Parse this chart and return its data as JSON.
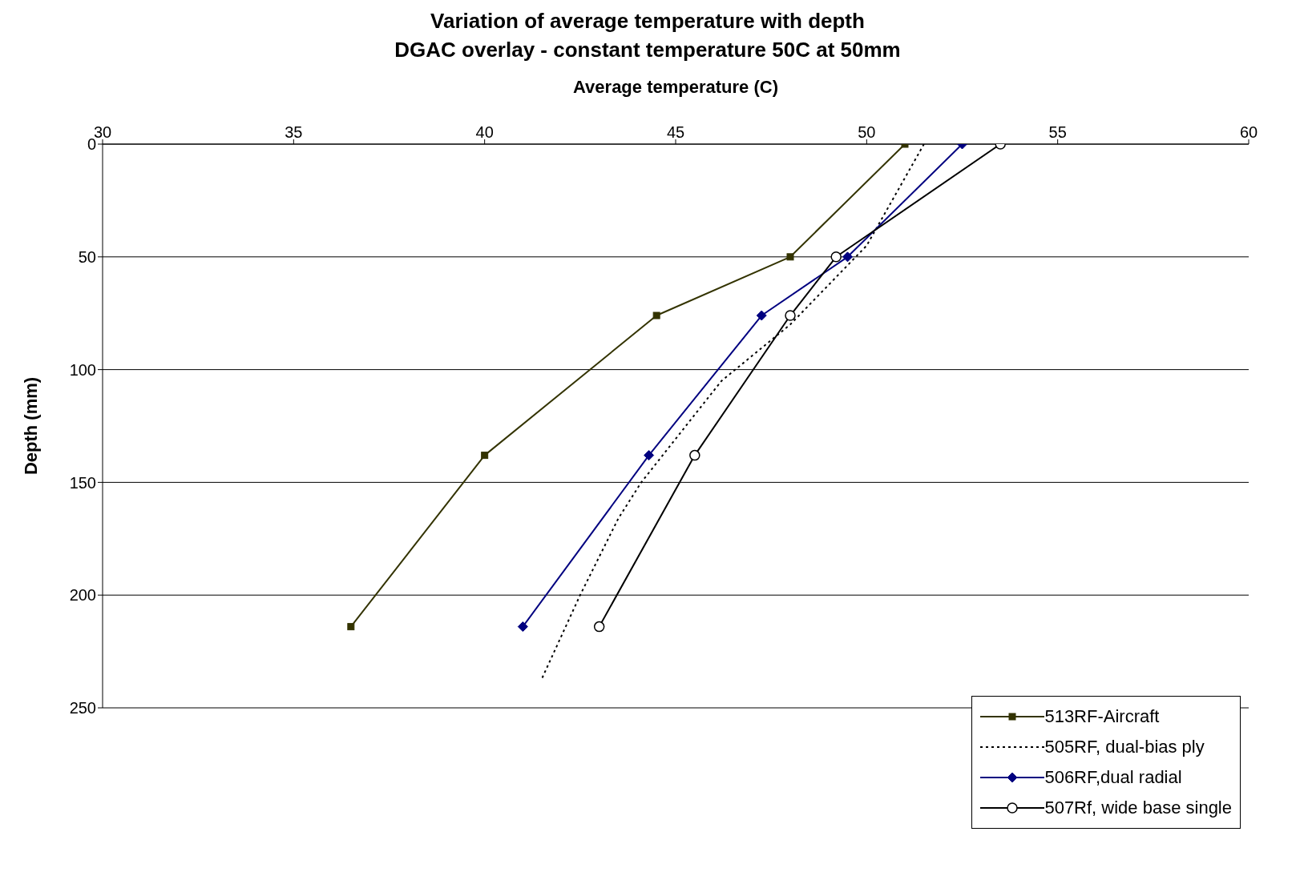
{
  "chart_data": {
    "type": "line",
    "title": "Variation of average temperature with depth",
    "subtitle": "DGAC overlay - constant temperature 50C at 50mm",
    "xlabel": "Average temperature (C)",
    "ylabel": "Depth (mm)",
    "xlim": [
      30,
      60
    ],
    "xticks": [
      30,
      35,
      40,
      45,
      50,
      55,
      60
    ],
    "ylim": [
      250,
      0
    ],
    "yticks": [
      0,
      50,
      100,
      150,
      200,
      250
    ],
    "grid": "y",
    "legend": "bottom right",
    "series": [
      {
        "name": "513RF-Aircraft",
        "color": "#333300",
        "marker": "square",
        "line_style": "solid",
        "x": [
          51,
          48,
          44.5,
          40,
          36.5
        ],
        "values": [
          0,
          50,
          76,
          138,
          214
        ]
      },
      {
        "name": "505RF, dual-bias ply",
        "color": "#000000",
        "marker": "none",
        "line_style": "dotted",
        "x": [
          51.5,
          50,
          48,
          46.2,
          44.1,
          43.5,
          42.5,
          41.5
        ],
        "values": [
          0,
          45,
          80,
          105,
          150,
          166,
          200,
          237
        ]
      },
      {
        "name": "506RF,dual radial",
        "color": "#000080",
        "marker": "diamond",
        "line_style": "solid",
        "x": [
          52.5,
          49.5,
          47.25,
          44.3,
          41
        ],
        "values": [
          0,
          50,
          76,
          138,
          214
        ]
      },
      {
        "name": "507Rf, wide base single",
        "color": "#000000",
        "marker": "circle",
        "line_style": "solid",
        "x": [
          53.5,
          49.2,
          48,
          45.5,
          43
        ],
        "values": [
          0,
          50,
          76,
          138,
          214
        ]
      }
    ]
  }
}
